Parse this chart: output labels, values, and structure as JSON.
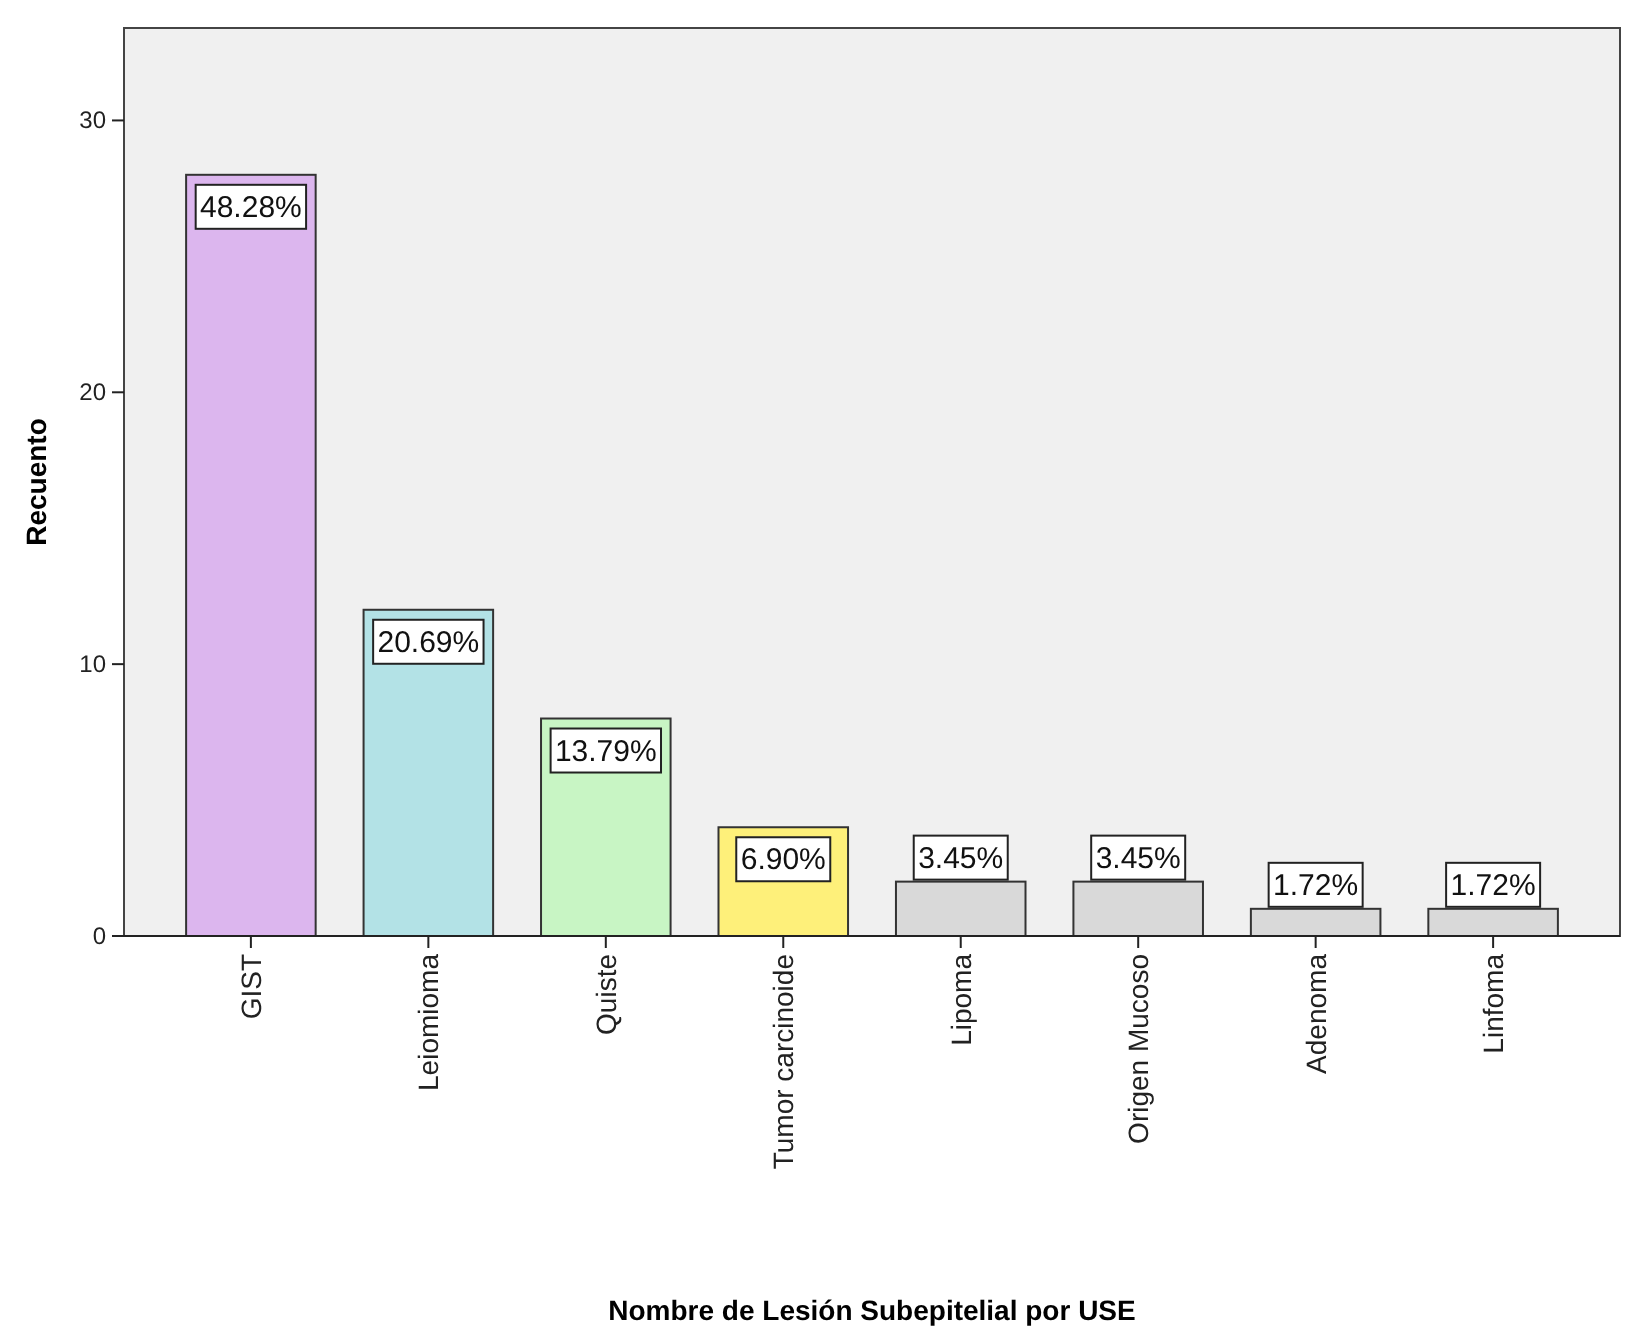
{
  "chart_data": {
    "type": "bar",
    "xlabel": "Nombre de Lesión Subepitelial por USE",
    "ylabel": "Recuento",
    "categories": [
      "GIST",
      "Leiomioma",
      "Quiste",
      "Tumor carcinoide",
      "Lipoma",
      "Origen Mucoso",
      "Adenoma",
      "Linfoma"
    ],
    "values": [
      28,
      12,
      8,
      4,
      2,
      2,
      1,
      1
    ],
    "colors": [
      "#dcb6ee",
      "#b3e2e6",
      "#c8f5c4",
      "#fef07a",
      "#d9d9d9",
      "#d9d9d9",
      "#d9d9d9",
      "#d9d9d9"
    ],
    "annotations": [
      {
        "text": "48.28%",
        "x": "GIST",
        "y": 28
      },
      {
        "text": "20.69%",
        "x": "Leiomioma",
        "y": 12
      },
      {
        "text": "13.79%",
        "x": "Quiste",
        "y": 8
      },
      {
        "text": "6.90%",
        "x": "Tumor carcinoide",
        "y": 4
      },
      {
        "text": "3.45%",
        "x": "Lipoma",
        "y": 2
      },
      {
        "text": "3.45%",
        "x": "Origen Mucoso",
        "y": 2
      },
      {
        "text": "1.72%",
        "x": "Adenoma",
        "y": 1
      },
      {
        "text": "1.72%",
        "x": "Linfoma",
        "y": 1
      }
    ],
    "ylim": [
      0,
      33.4
    ],
    "yticks": [
      0,
      10,
      20,
      30
    ],
    "grid": false
  }
}
